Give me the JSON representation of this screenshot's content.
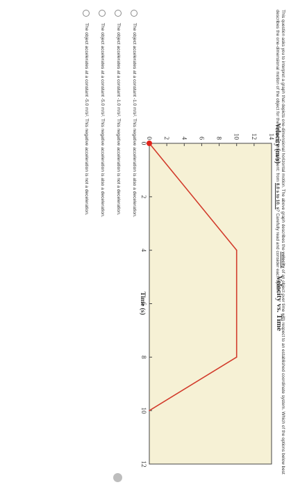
{
  "question": {
    "text_before": "This question asks you to interpret a graph that depicts one-dimensional horizontal motion. The above graph describes the ",
    "velocity_word": "velocity",
    "text_middle": " of an object over time with respect to an established coordinate system. Which of the options below best describes the one-dimensional motion of the object for the following time segment: from ",
    "segment": "8.0 s to 10. s",
    "text_after": "? Carefully read and consider each option!"
  },
  "options": [
    "The object accelerates at a constant -1.0 m/s². This negative acceleration is also a deceleration.",
    "The object accelerates at a constant -1.0 m/s². This negative acceleration is not a deceleration.",
    "The object accelerates at a constant -5.0 m/s². This negative acceleration is also a deceleration.",
    "The object accelerates at a constant -5.0 m/s². This negative acceleration is not a deceleration."
  ],
  "chart_data": {
    "type": "line",
    "title": "Velocity vs. Time",
    "xlabel": "Time (s)",
    "ylabel": "Velocity (m/s)",
    "xlim": [
      0,
      12
    ],
    "ylim": [
      0,
      14
    ],
    "x_ticks": [
      "0",
      "2",
      "4",
      "6",
      "8",
      "10",
      "12"
    ],
    "y_ticks": [
      "0",
      "2",
      "4",
      "6",
      "8",
      "10",
      "12",
      "14"
    ],
    "grid": false,
    "series": [
      {
        "x": [
          0,
          4,
          8,
          10
        ],
        "y": [
          0,
          10,
          10,
          0
        ]
      }
    ],
    "start_marker": {
      "x": 0,
      "y": 0
    },
    "colors": {
      "plot_bg": "#f6f1d5",
      "line": "#d23b2b",
      "marker": "#e0241b",
      "axis": "#444444"
    }
  }
}
